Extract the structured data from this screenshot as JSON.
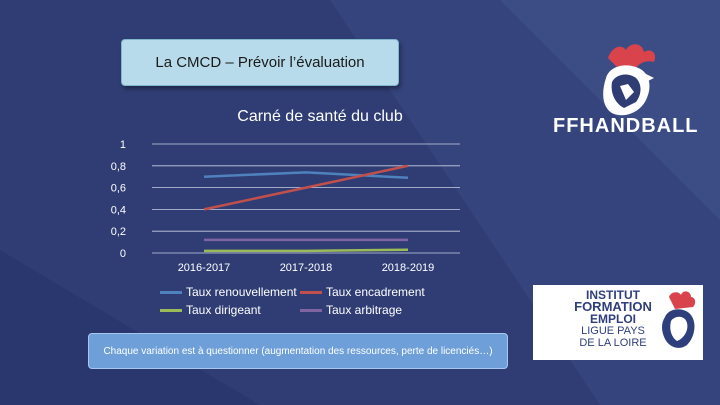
{
  "slide": {
    "title": "La CMCD – Prévoir l’évaluation",
    "note": "Chaque variation est à questionner (augmentation des ressources, perte de licenciés…)"
  },
  "logos": {
    "ffhandball_wordmark": "FFHANDBALL",
    "ife_lines": [
      "INSTITUT",
      "FORMATION",
      "EMPLOI",
      "LIGUE PAYS",
      "DE LA LOIRE"
    ]
  },
  "colors": {
    "background": "#2f3d74",
    "title_box": "#b7dbea",
    "note_box": "#6f9fd8",
    "accent_red": "#d9434b"
  },
  "chart_data": {
    "type": "line",
    "title": "Carné de santé du club",
    "categories": [
      "2016-2017",
      "2017-2018",
      "2018-2019"
    ],
    "y_ticks": [
      "0",
      "0,2",
      "0,4",
      "0,6",
      "0,8",
      "1"
    ],
    "ylim": [
      0,
      1
    ],
    "grid": true,
    "legend_position": "bottom",
    "series": [
      {
        "name": "Taux renouvellement",
        "color": "#4f81bd",
        "values": [
          0.7,
          0.74,
          0.69
        ]
      },
      {
        "name": "Taux encadrement",
        "color": "#c0504d",
        "values": [
          0.4,
          0.6,
          0.8
        ]
      },
      {
        "name": "Taux dirigeant",
        "color": "#9bbb59",
        "values": [
          0.02,
          0.02,
          0.03
        ]
      },
      {
        "name": "Taux arbitrage",
        "color": "#8064a2",
        "values": [
          0.12,
          0.12,
          0.12
        ]
      }
    ]
  }
}
